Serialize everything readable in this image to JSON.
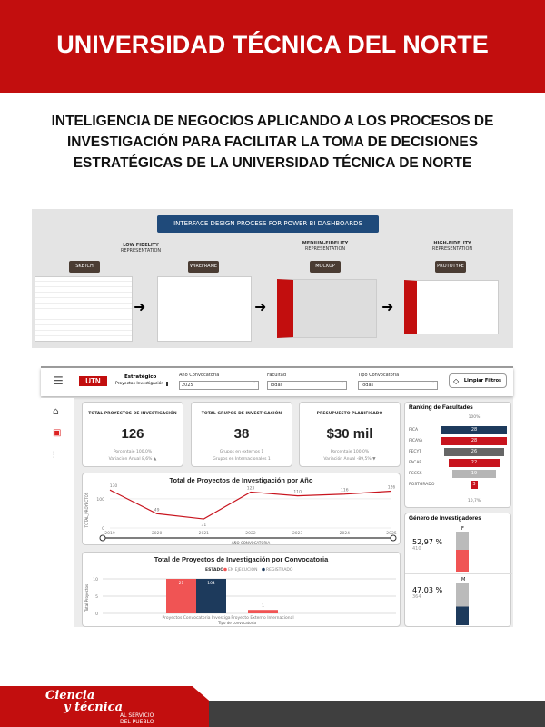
{
  "header": {
    "title": "UNIVERSIDAD TÉCNICA DEL NORTE"
  },
  "subtitle": "INTELIGENCIA DE NEGOCIOS APLICANDO A LOS PROCESOS DE INVESTIGACIÓN PARA FACILITAR LA TOMA DE DECISIONES ESTRATÉGICAS DE LA UNIVERSIDAD TÉCNICA DE NORTE",
  "process": {
    "banner": "INTERFACE DESIGN PROCESS FOR POWER BI DASHBOARDS",
    "stages": [
      {
        "fidelity": "LOW FIDELITY",
        "rep": "REPRESENTATION"
      },
      {
        "fidelity": "MEDIUM-FIDELITY",
        "rep": "REPRESENTATION"
      },
      {
        "fidelity": "HIGH-FIDELITY",
        "rep": "REPRESENTATION"
      }
    ],
    "tags": [
      "SKETCH",
      "WIREFRAME",
      "MOCKUP",
      "PROTOTYPE"
    ]
  },
  "dashboard": {
    "brand": {
      "title": "Estratégico",
      "subtitle": "Proyectos Investigación"
    },
    "filters": [
      {
        "label": "Año Convocatoria",
        "value": "2025"
      },
      {
        "label": "Facultad",
        "value": "Todas"
      },
      {
        "label": "Tipo Convocatoria",
        "value": "Todas"
      }
    ],
    "clear_label": "Limpiar Filtros",
    "kpis": [
      {
        "title": "TOTAL PROYECTOS DE INVESTIGACIÓN",
        "value": "126",
        "line1": "Porcentaje 100,0%",
        "line2": "Variación Anual 8,6% ▲"
      },
      {
        "title": "TOTAL GRUPOS DE INVESTIGACIÓN",
        "value": "38",
        "line1": "Grupos en externos 1",
        "line2": "Grupos en Internacionales 1"
      },
      {
        "title": "PRESUPUESTO PLANIFICADO",
        "value": "$30 mil",
        "line1": "Porcentaje 100,0%",
        "line2": "Variación Anual -89,5% ▼"
      }
    ],
    "ranking": {
      "title": "Ranking de Facultades",
      "top": "100%",
      "bottom": "10,7%",
      "items": [
        {
          "name": "FICA",
          "value": 28,
          "color": "#1d3a5c"
        },
        {
          "name": "FICAYA",
          "value": 28,
          "color": "#c8141e"
        },
        {
          "name": "FECYT",
          "value": 26,
          "color": "#666666"
        },
        {
          "name": "FACAE",
          "value": 22,
          "color": "#c8141e"
        },
        {
          "name": "FCCSS",
          "value": 19,
          "color": "#b5b5b5"
        },
        {
          "name": "POSTGRADO",
          "value": 3,
          "color": "#c8141e"
        }
      ]
    },
    "gender": {
      "title": "Género de Investigadores",
      "items": [
        {
          "label": "F",
          "pct": "52,97 %",
          "count": "410"
        },
        {
          "label": "M",
          "pct": "47,03 %",
          "count": "364"
        }
      ]
    }
  },
  "chart_data": [
    {
      "type": "line",
      "title": "Total de Proyectos de Investigación por Año",
      "xlabel": "AÑO CONVOCATORIA",
      "ylabel": "TOTAL_PROYECTOS",
      "x": [
        2019,
        2020,
        2021,
        2022,
        2023,
        2024,
        2025
      ],
      "values": [
        130,
        49,
        31,
        123,
        110,
        116,
        126
      ],
      "yticks": [
        0,
        100
      ],
      "color": "#c8141e"
    },
    {
      "type": "bar",
      "title": "Total de Proyectos de Investigación por Convocatoria",
      "xlabel": "Tipo de convocatoria",
      "ylabel": "Total Proyectos",
      "legend_title": "ESTADO",
      "categories": [
        "Proyectos Convocatoria Investiga",
        "Proyecto Externo Internacional"
      ],
      "yticks": [
        0,
        5,
        10
      ],
      "series": [
        {
          "name": "EN EJECUCIÓN",
          "values": [
            21,
            1
          ],
          "color": "#f05454"
        },
        {
          "name": "REGISTRADO",
          "values": [
            104,
            0
          ],
          "color": "#1d3a5c"
        }
      ]
    }
  ],
  "footer": {
    "slogan1": "Ciencia",
    "slogan2": "y técnica",
    "slogan3": "AL SERVICIO",
    "slogan4": "DEL PUEBLO"
  }
}
